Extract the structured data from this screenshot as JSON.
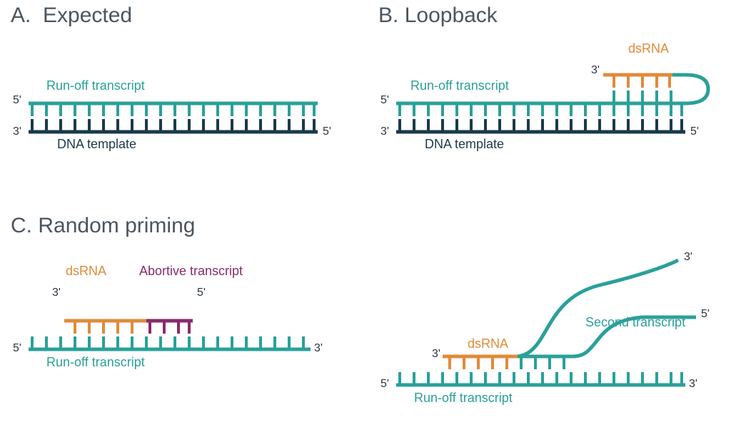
{
  "colors": {
    "title": "#4a5560",
    "teal": "#2aa099",
    "dark": "#1a3a4a",
    "orange": "#e08b3a",
    "purple": "#8a2a6a",
    "end_text": "#2a3540"
  },
  "fonts": {
    "title_size": 30,
    "label_size": 18,
    "small_size": 16
  },
  "panels": {
    "A": {
      "letter": "A.",
      "title": "Expected",
      "runoff_label": "Run-off transcript",
      "dna_label": "DNA template",
      "ends": {
        "tl": "5'",
        "bl": "3'",
        "br": "5'"
      }
    },
    "B": {
      "letter": "B.",
      "title": "Loopback",
      "runoff_label": "Run-off transcript",
      "dna_label": "DNA template",
      "dsrna_label": "dsRNA",
      "ends": {
        "tl": "5'",
        "bl": "3'",
        "br": "5'",
        "loop_tl": "3'"
      }
    },
    "C": {
      "letter": "C.",
      "title": "Random priming",
      "left": {
        "dsrna_label": "dsRNA",
        "abortive_label": "Abortive transcript",
        "runoff_label": "Run-off transcript",
        "ends": {
          "tl": "5'",
          "tr": "3'",
          "frag_l": "3'",
          "frag_r": "5'"
        }
      },
      "right": {
        "dsrna_label": "dsRNA",
        "second_label": "Second transcript",
        "runoff_label": "Run-off transcript",
        "ends": {
          "tl": "5'",
          "tr": "3'",
          "frag_l": "3'",
          "curve_tr": "3'",
          "curve_br": "5'"
        }
      }
    }
  },
  "strand_style": {
    "line_width": 5,
    "tick_width": 4,
    "tick_height": 16,
    "tick_gap": 20
  }
}
